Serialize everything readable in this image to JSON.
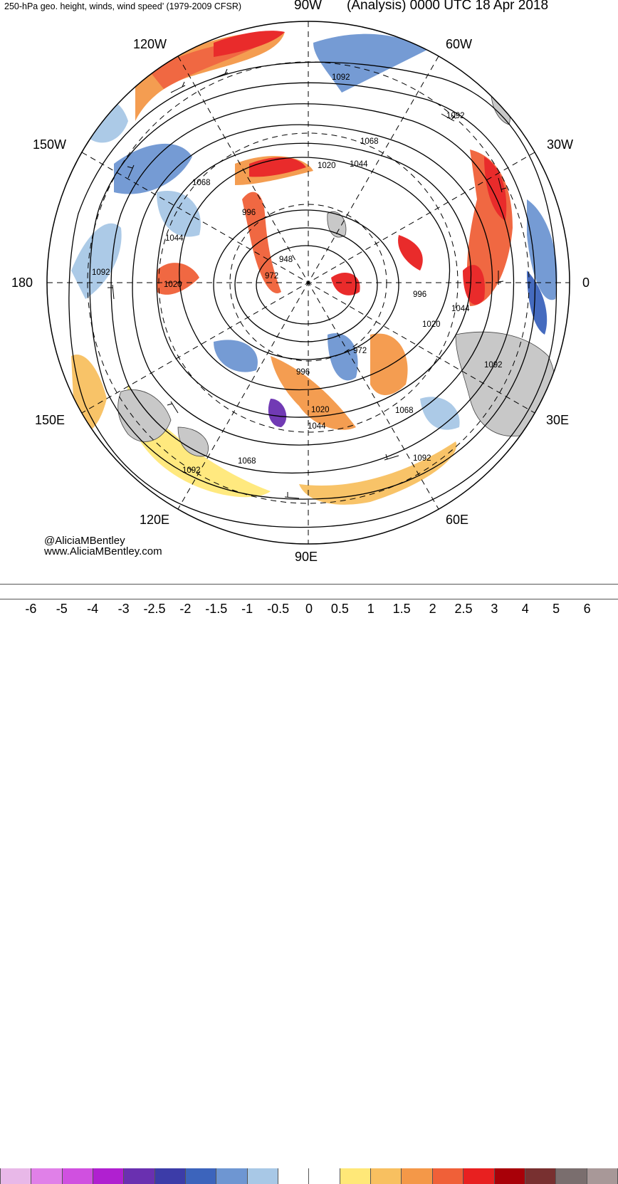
{
  "header": {
    "title_left": "250-hPa geo. height, winds, wind speed’ (1979-2009 CFSR)",
    "title_mid": "90W",
    "title_right": "(Analysis) 0000 UTC 18 Apr 2018"
  },
  "map": {
    "projection": "north polar stereographic",
    "longitude_labels": [
      "120W",
      "60W",
      "150W",
      "30W",
      "180",
      "0",
      "150E",
      "30E",
      "120E",
      "60E",
      "90E"
    ],
    "contour_labels": [
      "1092",
      "1092",
      "1068",
      "1044",
      "1020",
      "1068",
      "996",
      "1044",
      "948",
      "972",
      "1092",
      "1020",
      "996",
      "1044",
      "1020",
      "972",
      "996",
      "1092",
      "1020",
      "1044",
      "1068",
      "1068",
      "1092",
      "1092"
    ],
    "colors": {
      "land": "#c8c8c8",
      "background": "#ffffff",
      "contours": "#000000"
    }
  },
  "credits": {
    "handle": "@AliciaMBentley",
    "website": "www.AliciaMBentley.com"
  },
  "colorbar": {
    "colors": [
      "#e8b8e8",
      "#e080e8",
      "#d050e0",
      "#b020d0",
      "#6a30b0",
      "#3c3ca8",
      "#3c64bc",
      "#6e96d2",
      "#a8c8e6",
      "#ffffff",
      "#ffffff",
      "#ffe878",
      "#f8c060",
      "#f49848",
      "#f06038",
      "#e82020",
      "#a80008",
      "#783030",
      "#7a6e6e",
      "#a89898"
    ],
    "tick_labels": [
      "-6",
      "-5",
      "-4",
      "-3",
      "-2.5",
      "-2",
      "-1.5",
      "-1",
      "-0.5",
      "0",
      "0.5",
      "1",
      "1.5",
      "2",
      "2.5",
      "3",
      "4",
      "5",
      "6"
    ]
  }
}
